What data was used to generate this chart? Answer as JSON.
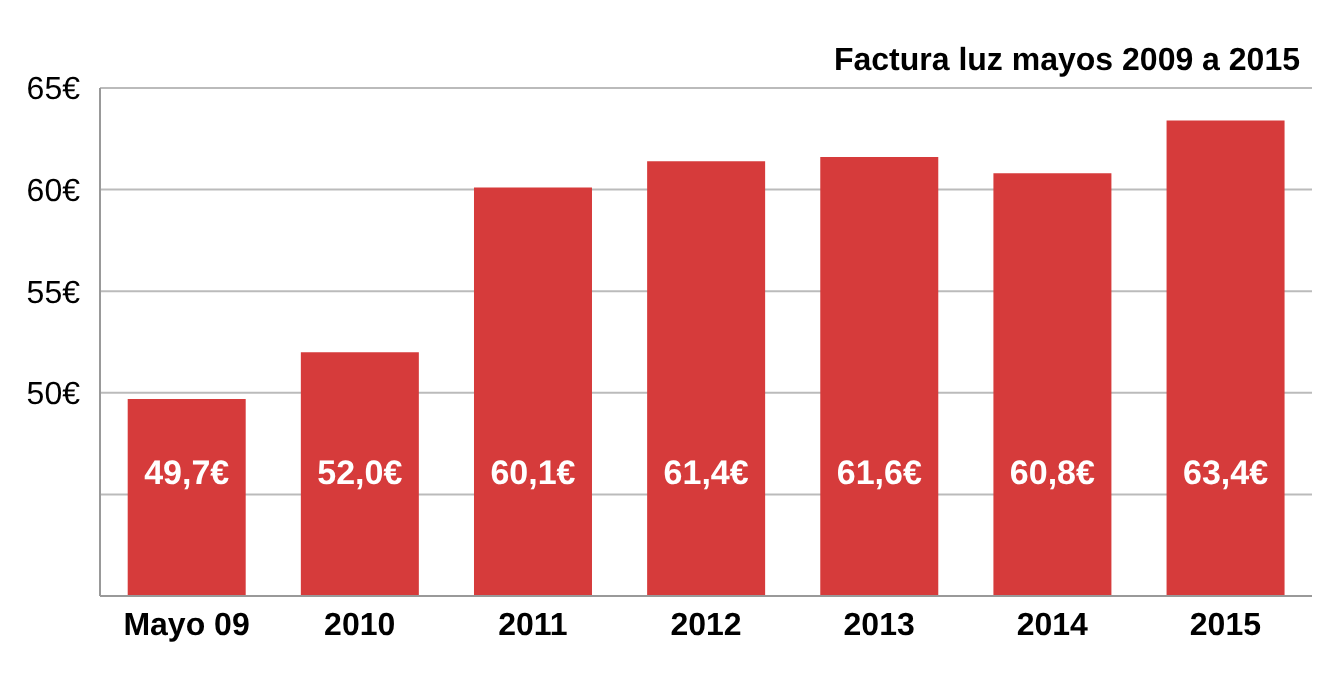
{
  "chart_data": {
    "type": "bar",
    "title": "Factura luz mayos 2009 a 2015",
    "categories": [
      "Mayo 09",
      "2010",
      "2011",
      "2012",
      "2013",
      "2014",
      "2015"
    ],
    "values": [
      49.7,
      52.0,
      60.1,
      61.4,
      61.6,
      60.8,
      63.4
    ],
    "value_labels": [
      "49,7€",
      "52,0€",
      "60,1€",
      "61,4€",
      "61,6€",
      "60,8€",
      "63,4€"
    ],
    "color": "#d63b3b",
    "ylim": [
      40,
      65
    ],
    "yticks": [
      {
        "value": 40,
        "label": null
      },
      {
        "value": 45,
        "label": null
      },
      {
        "value": 50,
        "label": "50€"
      },
      {
        "value": 55,
        "label": "55€"
      },
      {
        "value": 60,
        "label": "60€"
      },
      {
        "value": 65,
        "label": "65€"
      }
    ],
    "grid": "y"
  }
}
